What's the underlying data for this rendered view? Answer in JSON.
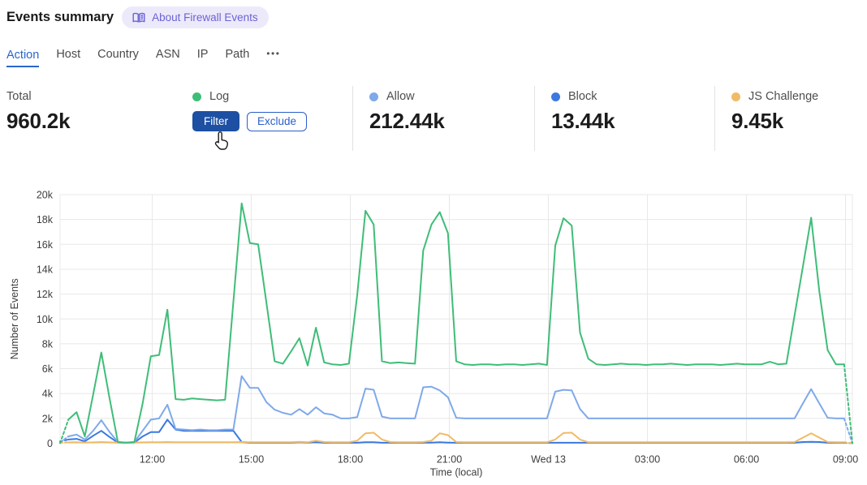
{
  "header": {
    "title": "Events summary",
    "badge": {
      "icon": "book-icon",
      "label": "About Firewall Events",
      "bg": "#eceafa",
      "color": "#6b62d6"
    }
  },
  "tabs": {
    "items": [
      {
        "label": "Action",
        "active": true
      },
      {
        "label": "Host",
        "active": false
      },
      {
        "label": "Country",
        "active": false
      },
      {
        "label": "ASN",
        "active": false
      },
      {
        "label": "IP",
        "active": false
      },
      {
        "label": "Path",
        "active": false
      }
    ],
    "more_label": "•••",
    "active_color": "#2966cc"
  },
  "stats": {
    "total": {
      "label": "Total",
      "value": "960.2k"
    },
    "log": {
      "label": "Log",
      "color": "#3fbd78",
      "filter_label": "Filter",
      "exclude_label": "Exclude",
      "hovered": true
    },
    "allow": {
      "label": "Allow",
      "color": "#7fa9ea",
      "value": "212.44k"
    },
    "block": {
      "label": "Block",
      "color": "#3b79e0",
      "value": "13.44k"
    },
    "js_challenge": {
      "label": "JS Challenge",
      "color": "#f0bb66",
      "value": "9.45k"
    }
  },
  "chart_data": {
    "type": "line",
    "xlabel": "Time (local)",
    "ylabel": "Number of Events",
    "x_tick_labels": [
      "12:00",
      "15:00",
      "18:00",
      "21:00",
      "Wed 13",
      "03:00",
      "06:00",
      "09:00"
    ],
    "y_tick_labels": [
      "0",
      "2k",
      "4k",
      "6k",
      "8k",
      "10k",
      "12k",
      "14k",
      "16k",
      "18k",
      "20k"
    ],
    "ylim": [
      0,
      20000
    ],
    "grid": true,
    "legend_position": "in-stat-cards",
    "interval_minutes": 15,
    "values_unit": "thousands of events",
    "edge_segments_dashed": true,
    "series": [
      {
        "name": "Log",
        "color": "#3fbd78",
        "values": [
          0,
          1.9,
          2.5,
          0.55,
          3.9,
          7.3,
          3.6,
          0.1,
          0.05,
          0.1,
          3.2,
          7.0,
          7.1,
          10.75,
          3.55,
          3.5,
          3.6,
          3.55,
          3.5,
          3.45,
          3.5,
          11.4,
          19.3,
          16.1,
          16.0,
          11.3,
          6.6,
          6.4,
          7.4,
          8.45,
          6.25,
          9.3,
          6.5,
          6.35,
          6.3,
          6.4,
          11.9,
          18.7,
          17.6,
          6.6,
          6.45,
          6.5,
          6.45,
          6.4,
          15.5,
          17.6,
          18.6,
          16.9,
          6.6,
          6.35,
          6.3,
          6.35,
          6.35,
          6.3,
          6.35,
          6.35,
          6.3,
          6.35,
          6.4,
          6.3,
          15.9,
          18.1,
          17.5,
          8.9,
          6.8,
          6.35,
          6.3,
          6.35,
          6.4,
          6.35,
          6.35,
          6.3,
          6.35,
          6.35,
          6.4,
          6.35,
          6.3,
          6.35,
          6.35,
          6.35,
          6.3,
          6.35,
          6.4,
          6.35,
          6.35,
          6.35,
          6.55,
          6.35,
          6.4,
          10.3,
          14.2,
          18.15,
          12.2,
          7.5,
          6.35,
          6.35,
          0
        ]
      },
      {
        "name": "Allow",
        "color": "#7fa9ea",
        "values": [
          0.05,
          0.55,
          0.7,
          0.3,
          1.0,
          1.85,
          0.9,
          0.1,
          0.05,
          0.1,
          1.0,
          1.9,
          2.0,
          3.1,
          1.15,
          1.1,
          1.05,
          1.1,
          1.05,
          1.05,
          1.1,
          1.1,
          5.4,
          4.45,
          4.45,
          3.3,
          2.7,
          2.45,
          2.3,
          2.75,
          2.3,
          2.9,
          2.4,
          2.3,
          2.0,
          2.0,
          2.1,
          4.4,
          4.3,
          2.15,
          2.0,
          2.0,
          2.0,
          2.0,
          4.5,
          4.55,
          4.25,
          3.7,
          2.05,
          2.0,
          2.0,
          2.0,
          2.0,
          2.0,
          2.0,
          2.0,
          2.0,
          2.0,
          2.0,
          2.0,
          4.15,
          4.3,
          4.25,
          2.75,
          2.0,
          2.0,
          2.0,
          2.0,
          2.0,
          2.0,
          2.0,
          2.0,
          2.0,
          2.0,
          2.0,
          2.0,
          2.0,
          2.0,
          2.0,
          2.0,
          2.0,
          2.0,
          2.0,
          2.0,
          2.0,
          2.0,
          2.0,
          2.0,
          2.0,
          2.0,
          3.2,
          4.35,
          3.2,
          2.05,
          2.0,
          2.0,
          0
        ]
      },
      {
        "name": "Block",
        "color": "#3b79e0",
        "values": [
          0.15,
          0.3,
          0.35,
          0.15,
          0.6,
          1.0,
          0.5,
          0.05,
          0.03,
          0.05,
          0.55,
          0.9,
          0.9,
          1.9,
          1.1,
          1.0,
          1.0,
          1.0,
          1.0,
          1.0,
          1.0,
          1.0,
          0.1,
          0.04,
          0.04,
          0.04,
          0.04,
          0.04,
          0.04,
          0.08,
          0.05,
          0.08,
          0.04,
          0.04,
          0.04,
          0.04,
          0.04,
          0.08,
          0.08,
          0.04,
          0.04,
          0.04,
          0.04,
          0.04,
          0.04,
          0.05,
          0.08,
          0.05,
          0.04,
          0.04,
          0.04,
          0.04,
          0.04,
          0.04,
          0.04,
          0.04,
          0.04,
          0.04,
          0.04,
          0.04,
          0.04,
          0.04,
          0.04,
          0.04,
          0.04,
          0.04,
          0.04,
          0.04,
          0.04,
          0.04,
          0.04,
          0.04,
          0.04,
          0.04,
          0.04,
          0.04,
          0.04,
          0.04,
          0.04,
          0.04,
          0.04,
          0.04,
          0.04,
          0.04,
          0.04,
          0.04,
          0.04,
          0.04,
          0.04,
          0.04,
          0.1,
          0.12,
          0.1,
          0.04,
          0.04,
          0.04,
          0
        ]
      },
      {
        "name": "JS Challenge",
        "color": "#f0bb66",
        "values": [
          0.05,
          0.07,
          0.08,
          0.06,
          0.07,
          0.1,
          0.07,
          0.05,
          0.05,
          0.05,
          0.07,
          0.08,
          0.08,
          0.1,
          0.08,
          0.08,
          0.08,
          0.08,
          0.08,
          0.08,
          0.08,
          0.08,
          0.1,
          0.08,
          0.08,
          0.08,
          0.08,
          0.08,
          0.08,
          0.12,
          0.08,
          0.2,
          0.1,
          0.08,
          0.08,
          0.08,
          0.2,
          0.8,
          0.85,
          0.3,
          0.1,
          0.08,
          0.08,
          0.08,
          0.1,
          0.2,
          0.8,
          0.65,
          0.1,
          0.08,
          0.08,
          0.08,
          0.08,
          0.08,
          0.08,
          0.08,
          0.08,
          0.08,
          0.08,
          0.08,
          0.3,
          0.82,
          0.85,
          0.3,
          0.08,
          0.08,
          0.08,
          0.08,
          0.08,
          0.08,
          0.08,
          0.08,
          0.08,
          0.08,
          0.08,
          0.08,
          0.08,
          0.08,
          0.08,
          0.08,
          0.08,
          0.08,
          0.08,
          0.08,
          0.08,
          0.08,
          0.08,
          0.08,
          0.08,
          0.1,
          0.45,
          0.8,
          0.45,
          0.1,
          0.08,
          0.08,
          0
        ]
      }
    ]
  }
}
